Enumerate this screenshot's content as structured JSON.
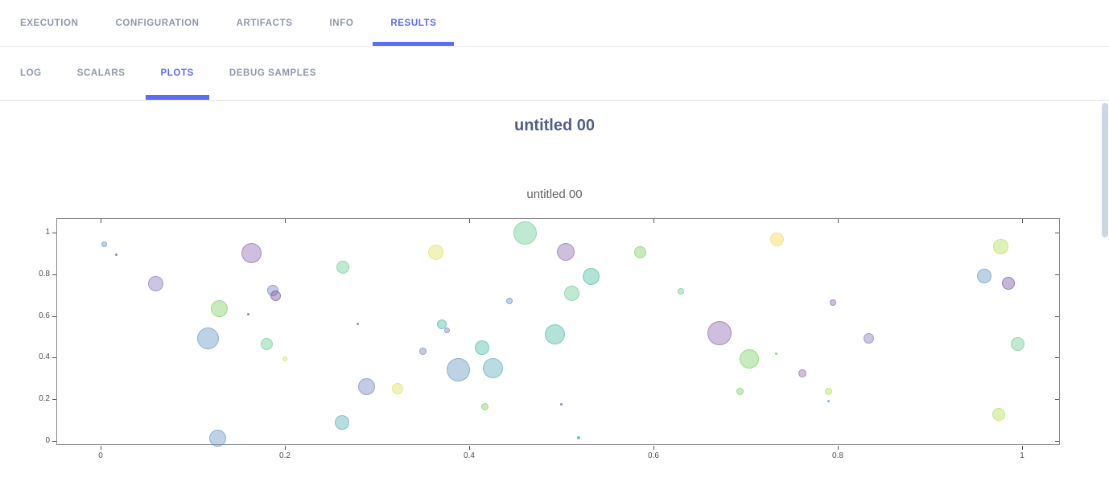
{
  "nav": {
    "tabs": [
      {
        "label": "EXECUTION",
        "active": false
      },
      {
        "label": "CONFIGURATION",
        "active": false
      },
      {
        "label": "ARTIFACTS",
        "active": false
      },
      {
        "label": "INFO",
        "active": false
      },
      {
        "label": "RESULTS",
        "active": true
      }
    ],
    "subtabs": [
      {
        "label": "LOG",
        "active": false
      },
      {
        "label": "SCALARS",
        "active": false
      },
      {
        "label": "PLOTS",
        "active": true
      },
      {
        "label": "DEBUG SAMPLES",
        "active": false
      }
    ]
  },
  "theme": {
    "accent": "#5b6cf9",
    "inactive_tab": "#8f97ab",
    "title_color": "#545e85",
    "plot_border": "#85888c",
    "scrollbar_thumb": "#ccd7e5"
  },
  "content": {
    "title": "untitled 00"
  },
  "chart_data": {
    "type": "scatter",
    "title": "untitled 00",
    "xlabel": "",
    "ylabel": "",
    "xlim": [
      -0.047,
      1.042
    ],
    "ylim": [
      -0.023,
      1.066
    ],
    "grid": false,
    "legend": "none",
    "xticks": [
      {
        "v": 0.0,
        "label": "0"
      },
      {
        "v": 0.2,
        "label": "0.2"
      },
      {
        "v": 0.4,
        "label": "0.4"
      },
      {
        "v": 0.6,
        "label": "0.6"
      },
      {
        "v": 0.8,
        "label": "0.8"
      },
      {
        "v": 1.0,
        "label": "1"
      }
    ],
    "yticks": [
      {
        "v": 0.0,
        "label": "0"
      },
      {
        "v": 0.2,
        "label": "0.2"
      },
      {
        "v": 0.4,
        "label": "0.4"
      },
      {
        "v": 0.6,
        "label": "0.6"
      },
      {
        "v": 0.8,
        "label": "0.8"
      },
      {
        "v": 1.0,
        "label": "1"
      }
    ],
    "palette": {
      "blue": "#6d9dc5",
      "slate": "#7f8cc4",
      "lavender": "#8d7fc4",
      "purple": "#9470b5",
      "dpurple": "#7d5ea6",
      "green": "#82d36a",
      "mint": "#74cf9a",
      "teal": "#52c0ab",
      "bteal": "#64b2be",
      "ygreen": "#b9e05f",
      "yellow": "#dfe36a",
      "wyellow": "#f6da5c",
      "cyan": "#5ab8d9"
    },
    "points": [
      {
        "x": 0.004,
        "y": 0.944,
        "d": 7,
        "c": "blue"
      },
      {
        "x": 0.017,
        "y": 0.894,
        "d": 3,
        "c": "purple"
      },
      {
        "x": 0.06,
        "y": 0.755,
        "d": 19,
        "c": "lavender"
      },
      {
        "x": 0.129,
        "y": 0.636,
        "d": 21,
        "c": "green"
      },
      {
        "x": 0.117,
        "y": 0.493,
        "d": 27,
        "c": "blue"
      },
      {
        "x": 0.127,
        "y": 0.012,
        "d": 21,
        "c": "blue"
      },
      {
        "x": 0.164,
        "y": 0.902,
        "d": 25,
        "c": "purple"
      },
      {
        "x": 0.187,
        "y": 0.722,
        "d": 14,
        "c": "slate"
      },
      {
        "x": 0.19,
        "y": 0.698,
        "d": 13,
        "c": "dpurple"
      },
      {
        "x": 0.16,
        "y": 0.61,
        "d": 3,
        "c": "purple"
      },
      {
        "x": 0.18,
        "y": 0.467,
        "d": 15,
        "c": "mint"
      },
      {
        "x": 0.2,
        "y": 0.393,
        "d": 6,
        "c": "yellow"
      },
      {
        "x": 0.263,
        "y": 0.835,
        "d": 16,
        "c": "mint"
      },
      {
        "x": 0.364,
        "y": 0.906,
        "d": 19,
        "c": "yellow"
      },
      {
        "x": 0.461,
        "y": 0.997,
        "d": 29,
        "c": "mint"
      },
      {
        "x": 0.505,
        "y": 0.908,
        "d": 22,
        "c": "purple"
      },
      {
        "x": 0.444,
        "y": 0.672,
        "d": 8,
        "c": "blue"
      },
      {
        "x": 0.279,
        "y": 0.562,
        "d": 3,
        "c": "slate"
      },
      {
        "x": 0.37,
        "y": 0.56,
        "d": 12,
        "c": "teal"
      },
      {
        "x": 0.376,
        "y": 0.532,
        "d": 7,
        "c": "slate"
      },
      {
        "x": 0.414,
        "y": 0.448,
        "d": 18,
        "c": "teal"
      },
      {
        "x": 0.35,
        "y": 0.429,
        "d": 9,
        "c": "slate"
      },
      {
        "x": 0.388,
        "y": 0.343,
        "d": 29,
        "c": "blue"
      },
      {
        "x": 0.426,
        "y": 0.351,
        "d": 25,
        "c": "bteal"
      },
      {
        "x": 0.493,
        "y": 0.511,
        "d": 25,
        "c": "teal"
      },
      {
        "x": 0.289,
        "y": 0.262,
        "d": 21,
        "c": "slate"
      },
      {
        "x": 0.322,
        "y": 0.251,
        "d": 14,
        "c": "yellow"
      },
      {
        "x": 0.417,
        "y": 0.166,
        "d": 9,
        "c": "green"
      },
      {
        "x": 0.5,
        "y": 0.176,
        "d": 3,
        "c": "purple"
      },
      {
        "x": 0.262,
        "y": 0.088,
        "d": 18,
        "c": "bteal"
      },
      {
        "x": 0.586,
        "y": 0.904,
        "d": 15,
        "c": "green"
      },
      {
        "x": 0.734,
        "y": 0.969,
        "d": 17,
        "c": "wyellow"
      },
      {
        "x": 0.532,
        "y": 0.788,
        "d": 21,
        "c": "teal"
      },
      {
        "x": 0.511,
        "y": 0.71,
        "d": 19,
        "c": "mint"
      },
      {
        "x": 0.63,
        "y": 0.718,
        "d": 8,
        "c": "mint"
      },
      {
        "x": 0.672,
        "y": 0.517,
        "d": 30,
        "c": "purple"
      },
      {
        "x": 0.704,
        "y": 0.394,
        "d": 24,
        "c": "green"
      },
      {
        "x": 0.733,
        "y": 0.417,
        "d": 3,
        "c": "green"
      },
      {
        "x": 0.762,
        "y": 0.324,
        "d": 10,
        "c": "purple"
      },
      {
        "x": 0.694,
        "y": 0.236,
        "d": 9,
        "c": "green"
      },
      {
        "x": 0.519,
        "y": 0.016,
        "d": 4,
        "c": "teal"
      },
      {
        "x": 0.79,
        "y": 0.236,
        "d": 9,
        "c": "ygreen"
      },
      {
        "x": 0.79,
        "y": 0.19,
        "d": 3,
        "c": "cyan"
      },
      {
        "x": 0.795,
        "y": 0.664,
        "d": 8,
        "c": "purple"
      },
      {
        "x": 0.834,
        "y": 0.494,
        "d": 13,
        "c": "lavender"
      },
      {
        "x": 0.977,
        "y": 0.934,
        "d": 19,
        "c": "ygreen"
      },
      {
        "x": 0.959,
        "y": 0.792,
        "d": 18,
        "c": "blue"
      },
      {
        "x": 0.985,
        "y": 0.757,
        "d": 16,
        "c": "dpurple"
      },
      {
        "x": 0.995,
        "y": 0.467,
        "d": 17,
        "c": "mint"
      },
      {
        "x": 0.975,
        "y": 0.127,
        "d": 16,
        "c": "ygreen"
      }
    ]
  }
}
